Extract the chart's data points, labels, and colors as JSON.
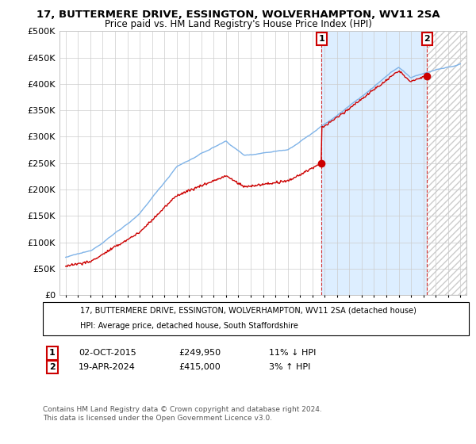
{
  "title": "17, BUTTERMERE DRIVE, ESSINGTON, WOLVERHAMPTON, WV11 2SA",
  "subtitle": "Price paid vs. HM Land Registry's House Price Index (HPI)",
  "ylabel_ticks": [
    "£0",
    "£50K",
    "£100K",
    "£150K",
    "£200K",
    "£250K",
    "£300K",
    "£350K",
    "£400K",
    "£450K",
    "£500K"
  ],
  "ytick_values": [
    0,
    50000,
    100000,
    150000,
    200000,
    250000,
    300000,
    350000,
    400000,
    450000,
    500000
  ],
  "ylim": [
    0,
    500000
  ],
  "xlim_start": 1994.5,
  "xlim_end": 2027.5,
  "hpi_color": "#7fb3e8",
  "price_color": "#cc0000",
  "point1_year": 2015.75,
  "point1_price": 249950,
  "point2_year": 2024.3,
  "point2_price": 415000,
  "legend_line1": "17, BUTTERMERE DRIVE, ESSINGTON, WOLVERHAMPTON, WV11 2SA (detached house)",
  "legend_line2": "HPI: Average price, detached house, South Staffordshire",
  "annotation1_label": "1",
  "annotation1_date": "02-OCT-2015",
  "annotation1_price": "£249,950",
  "annotation1_hpi": "11% ↓ HPI",
  "annotation2_label": "2",
  "annotation2_date": "19-APR-2024",
  "annotation2_price": "£415,000",
  "annotation2_hpi": "3% ↑ HPI",
  "footer": "Contains HM Land Registry data © Crown copyright and database right 2024.\nThis data is licensed under the Open Government Licence v3.0.",
  "background_color": "#ffffff",
  "grid_color": "#cccccc",
  "shade_color": "#ddeeff",
  "hatch_color": "#cccccc"
}
